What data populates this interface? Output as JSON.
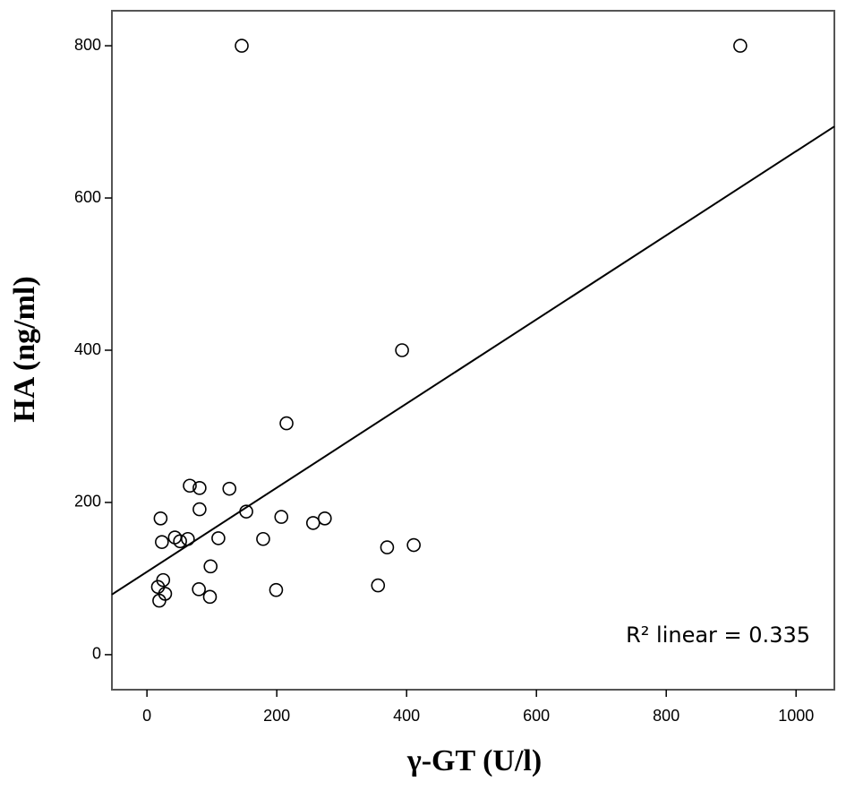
{
  "chart_data": {
    "type": "scatter",
    "x_label": "γ-GT (U/l)",
    "y_label": "HA (ng/ml)",
    "annotation": "R² linear = 0.335",
    "x": [
      146,
      914,
      393,
      215,
      66,
      81,
      127,
      81,
      153,
      207,
      274,
      256,
      21,
      23,
      43,
      51,
      63,
      110,
      179,
      370,
      411,
      98,
      25,
      17,
      28,
      19,
      80,
      97,
      199,
      356
    ],
    "y": [
      800,
      800,
      400,
      304,
      222,
      219,
      218,
      191,
      188,
      181,
      179,
      173,
      179,
      148,
      154,
      149,
      152,
      153,
      152,
      141,
      144,
      116,
      98,
      89,
      80,
      71,
      86,
      76,
      85,
      91
    ],
    "trendline": {
      "x": [
        -54,
        1059
      ],
      "y": [
        79,
        694
      ]
    },
    "color": "#000000",
    "xlim": [
      -54,
      1059
    ],
    "ylim": [
      -46,
      846
    ],
    "xticks": [
      0,
      200,
      400,
      600,
      800,
      1000
    ],
    "yticks": [
      0,
      200,
      400,
      600,
      800
    ]
  }
}
